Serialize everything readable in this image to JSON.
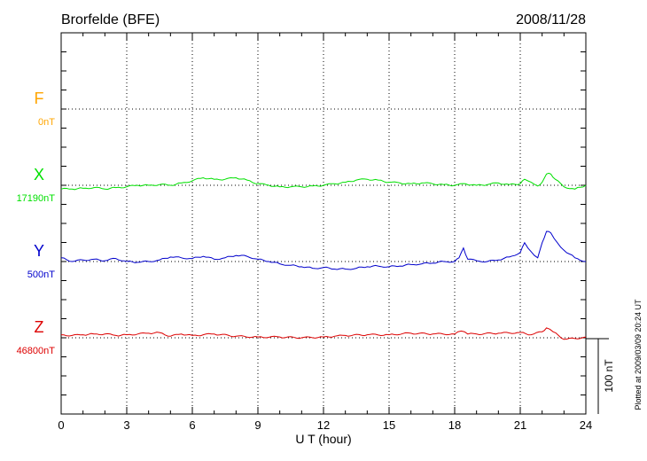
{
  "chart_data": {
    "type": "line",
    "title": "Brorfelde (BFE)",
    "date": "2008/11/28",
    "xlabel": "U T (hour)",
    "xlim": [
      0,
      24
    ],
    "xticks": [
      0,
      3,
      6,
      9,
      12,
      15,
      18,
      21,
      24
    ],
    "xtick_labels": [
      "0",
      "3",
      "6",
      "9",
      "12",
      "15",
      "18",
      "21",
      "24"
    ],
    "grid": true,
    "scale_bar_label": "100 nT",
    "side_note": "Plotted at 2009/03/09 20:24 UT",
    "series": [
      {
        "name": "F",
        "baseline_label": "0nT",
        "color": "#ffa500",
        "baseline_level": 3,
        "x": [],
        "y": []
      },
      {
        "name": "X",
        "baseline_label": "17190nT",
        "color": "#00e000",
        "baseline_level": 2,
        "x": [
          0,
          0.5,
          1,
          1.5,
          2,
          2.5,
          3,
          3.5,
          4,
          4.5,
          5,
          5.5,
          6,
          6.5,
          7,
          7.5,
          8,
          8.5,
          9,
          9.5,
          10,
          10.5,
          11,
          11.5,
          12,
          12.5,
          13,
          13.5,
          14,
          14.5,
          15,
          15.5,
          16,
          16.5,
          17,
          17.5,
          18,
          18.5,
          19,
          19.5,
          20,
          20.5,
          21,
          21.2,
          21.5,
          21.8,
          22,
          22.2,
          22.4,
          22.6,
          23,
          23.5,
          24
        ],
        "y": [
          -5,
          -5,
          -4,
          -3,
          -5,
          -3,
          -2,
          0,
          0,
          1,
          0,
          3,
          6,
          10,
          8,
          8,
          10,
          7,
          2,
          0,
          -2,
          -2,
          -2,
          -1,
          0,
          2,
          4,
          7,
          8,
          7,
          4,
          3,
          2,
          3,
          2,
          1,
          0,
          2,
          0,
          1,
          3,
          1,
          2,
          8,
          4,
          -1,
          4,
          15,
          15,
          8,
          -2,
          -5,
          0
        ]
      },
      {
        "name": "Y",
        "baseline_label": "500nT",
        "color": "#0000cc",
        "baseline_level": 1,
        "x": [
          0,
          0.5,
          1,
          1.5,
          2,
          2.5,
          3,
          3.5,
          4,
          4.5,
          5,
          5.5,
          6,
          6.5,
          7,
          7.5,
          8,
          8.5,
          9,
          9.5,
          10,
          10.5,
          11,
          11.5,
          12,
          12.5,
          13,
          13.5,
          14,
          14.5,
          15,
          15.5,
          16,
          16.5,
          17,
          17.5,
          18,
          18.2,
          18.4,
          18.6,
          19,
          19.5,
          20,
          20.5,
          21,
          21.2,
          21.5,
          21.8,
          22,
          22.2,
          22.4,
          22.7,
          23,
          23.5,
          24
        ],
        "y": [
          5,
          0,
          2,
          3,
          1,
          4,
          0,
          -1,
          0,
          2,
          6,
          5,
          4,
          7,
          3,
          5,
          8,
          7,
          3,
          0,
          -3,
          -5,
          -7,
          -9,
          -8,
          -10,
          -10,
          -9,
          -7,
          -6,
          -7,
          -6,
          -4,
          -3,
          -2,
          0,
          0,
          5,
          18,
          3,
          1,
          0,
          2,
          6,
          12,
          25,
          13,
          5,
          25,
          40,
          38,
          25,
          15,
          5,
          0
        ]
      },
      {
        "name": "Z",
        "baseline_label": "46800nT",
        "color": "#dd0000",
        "baseline_level": 0,
        "x": [
          0,
          0.5,
          1,
          1.5,
          2,
          2.5,
          3,
          3.5,
          4,
          4.5,
          5,
          5.5,
          6,
          6.5,
          7,
          8,
          9,
          10,
          11,
          12,
          12.5,
          13,
          14,
          15,
          16,
          17,
          18,
          18.3,
          18.6,
          19,
          20,
          21,
          21.5,
          22,
          22.2,
          22.5,
          23,
          23.5,
          24
        ],
        "y": [
          4,
          3,
          4,
          5,
          5,
          3,
          4,
          5,
          6,
          7,
          2,
          5,
          3,
          4,
          5,
          2,
          1,
          1,
          0,
          1,
          2,
          3,
          4,
          4,
          6,
          5,
          5,
          9,
          5,
          5,
          6,
          7,
          4,
          8,
          13,
          8,
          -2,
          -1,
          1
        ]
      }
    ]
  }
}
